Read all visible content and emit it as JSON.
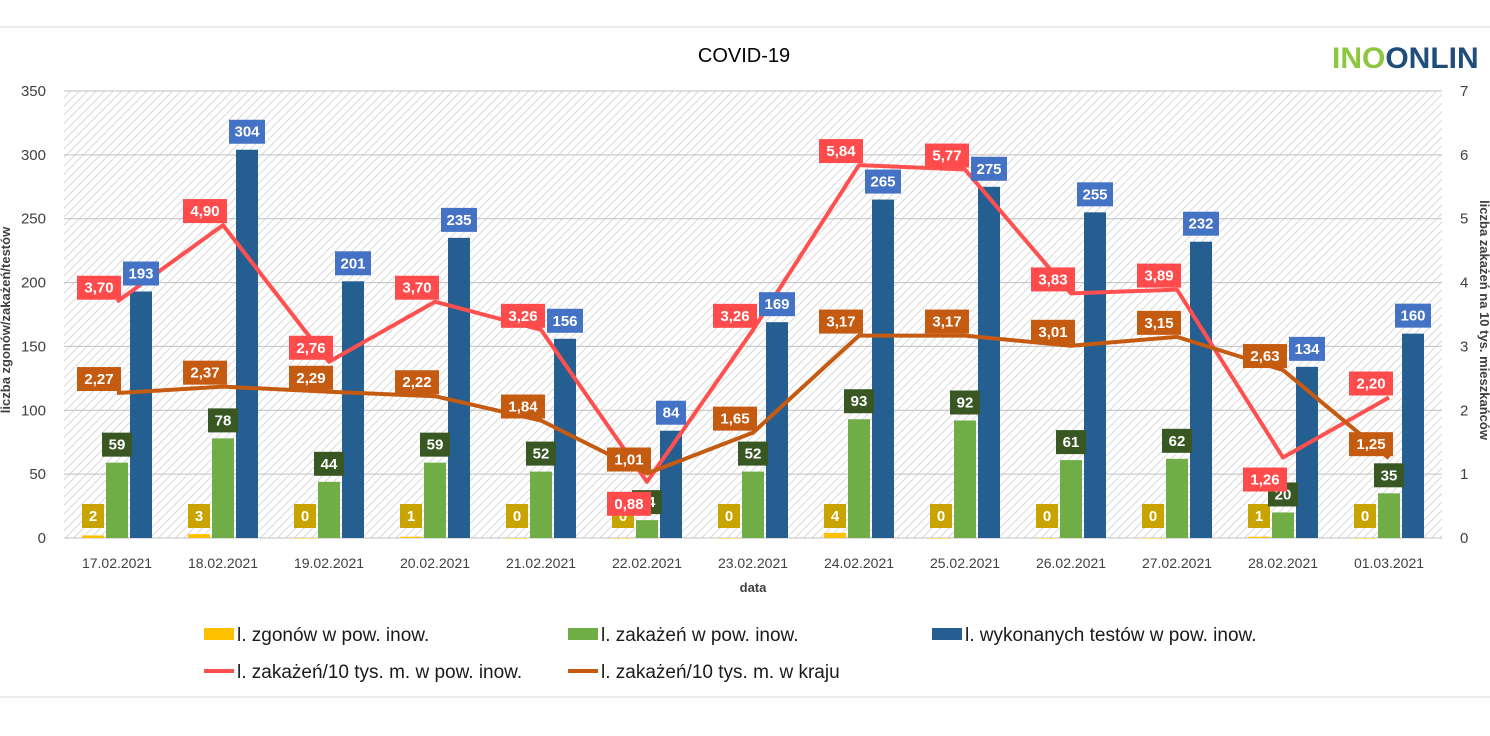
{
  "chart_data": {
    "type": "bar",
    "title": "COVID-19",
    "xlabel": "data",
    "ylabel_left": "liczba zgonów/zakażeń/testów",
    "ylabel_right": "liczba zakażeń na 10 tys. mieszkańców",
    "ylim_left": [
      0,
      350
    ],
    "ylim_right": [
      0,
      7
    ],
    "yticks_left": [
      0,
      50,
      100,
      150,
      200,
      250,
      300,
      350
    ],
    "yticks_right": [
      0,
      1,
      2,
      3,
      4,
      5,
      6,
      7
    ],
    "grid": true,
    "legend_position": "bottom",
    "categories": [
      "17.02.2021",
      "18.02.2021",
      "19.02.2021",
      "20.02.2021",
      "21.02.2021",
      "22.02.2021",
      "23.02.2021",
      "24.02.2021",
      "25.02.2021",
      "26.02.2021",
      "27.02.2021",
      "28.02.2021",
      "01.03.2021"
    ],
    "bar_series": [
      {
        "name": "l. zgonów w pow. inow.",
        "color": "#FFC000",
        "label_bg": "#C9A400",
        "axis": "left",
        "values": [
          2,
          3,
          0,
          1,
          0,
          0,
          0,
          4,
          0,
          0,
          0,
          1,
          0
        ]
      },
      {
        "name": "l. zakażeń w pow. inow.",
        "color": "#70AD47",
        "label_bg": "#385723",
        "axis": "left",
        "values": [
          59,
          78,
          44,
          59,
          52,
          14,
          52,
          93,
          92,
          61,
          62,
          20,
          35
        ]
      },
      {
        "name": "l. wykonanych testów w pow. inow.",
        "color": "#255E91",
        "label_bg": "#4472C4",
        "axis": "left",
        "values": [
          193,
          304,
          201,
          235,
          156,
          84,
          169,
          265,
          275,
          255,
          232,
          134,
          160
        ]
      }
    ],
    "line_series": [
      {
        "name": "l. zakażeń/10 tys. m. w pow. inow.",
        "color": "#FF5050",
        "label_bg": "#FF4B4B",
        "axis": "right",
        "values": [
          3.7,
          4.9,
          2.76,
          3.7,
          3.26,
          0.88,
          3.26,
          5.84,
          5.77,
          3.83,
          3.89,
          1.26,
          2.2
        ],
        "labels": [
          "3,70",
          "4,90",
          "2,76",
          "3,70",
          "3,26",
          "0,88",
          "3,26",
          "5,84",
          "5,77",
          "3,83",
          "3,89",
          "1,26",
          "2,20"
        ]
      },
      {
        "name": "l. zakażeń/10 tys. m. w kraju",
        "color": "#C55A11",
        "label_bg": "#C55A11",
        "axis": "right",
        "values": [
          2.27,
          2.37,
          2.29,
          2.22,
          1.84,
          1.01,
          1.65,
          3.17,
          3.17,
          3.01,
          3.15,
          2.63,
          1.25
        ],
        "labels": [
          "2,27",
          "2,37",
          "2,29",
          "2,22",
          "1,84",
          "1,01",
          "1,65",
          "3,17",
          "3,17",
          "3,01",
          "3,15",
          "2,63",
          "1,25"
        ]
      }
    ]
  },
  "logo": {
    "part1": "INO",
    "part2": "ONLIN",
    "color1": "#8DC63F",
    "color2": "#1F4E79"
  }
}
